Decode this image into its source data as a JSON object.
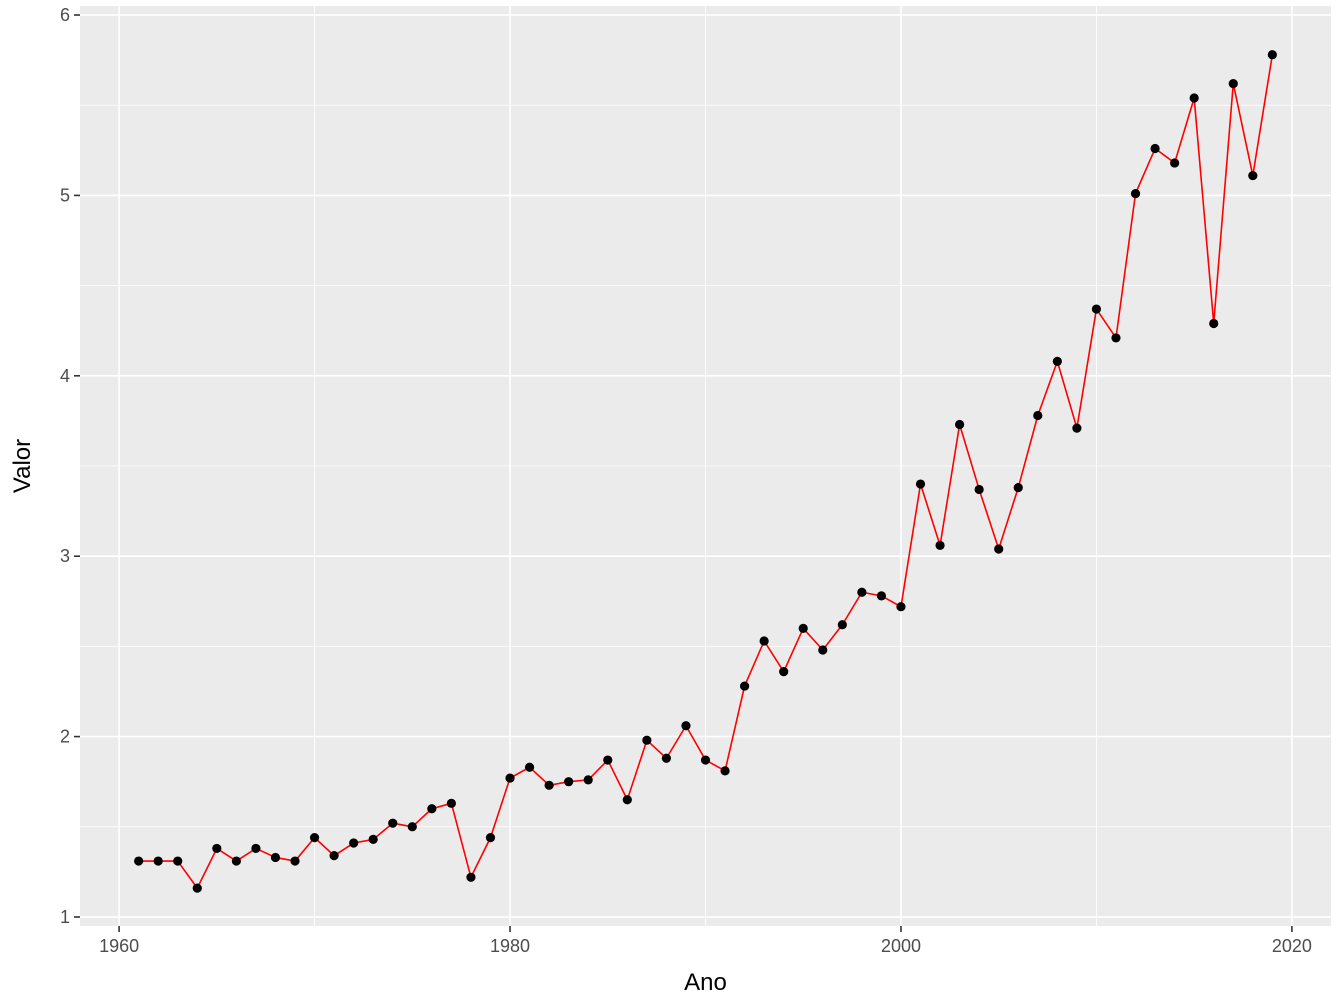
{
  "chart_data": {
    "type": "line",
    "title": "",
    "xlabel": "Ano",
    "ylabel": "Valor",
    "xlim": [
      1958,
      2022
    ],
    "ylim": [
      0.95,
      6.05
    ],
    "x_ticks": [
      1960,
      1980,
      2000,
      2020
    ],
    "y_ticks": [
      1,
      2,
      3,
      4,
      5,
      6
    ],
    "grid": true,
    "legend": "none",
    "colors": {
      "line": "#ff0000",
      "points": "#000000",
      "panel_background": "#ebebeb",
      "grid": "#ffffff"
    },
    "series": [
      {
        "x": [
          1961,
          1962,
          1963,
          1964,
          1965,
          1966,
          1967,
          1968,
          1969,
          1970,
          1971,
          1972,
          1973,
          1974,
          1975,
          1976,
          1977,
          1978,
          1979,
          1980,
          1981,
          1982,
          1983,
          1984,
          1985,
          1986,
          1987,
          1988,
          1989,
          1990,
          1991,
          1992,
          1993,
          1994,
          1995,
          1996,
          1997,
          1998,
          1999,
          2000,
          2001,
          2002,
          2003,
          2004,
          2005,
          2006,
          2007,
          2008,
          2009,
          2010,
          2011,
          2012,
          2013,
          2014,
          2015,
          2016,
          2017,
          2018,
          2019
        ],
        "values": [
          1.31,
          1.31,
          1.31,
          1.16,
          1.38,
          1.31,
          1.38,
          1.33,
          1.31,
          1.44,
          1.34,
          1.41,
          1.43,
          1.52,
          1.5,
          1.6,
          1.63,
          1.22,
          1.44,
          1.77,
          1.83,
          1.73,
          1.75,
          1.76,
          1.87,
          1.65,
          1.98,
          1.88,
          2.06,
          1.87,
          1.81,
          2.28,
          2.53,
          2.36,
          2.6,
          2.48,
          2.62,
          2.8,
          2.78,
          2.72,
          3.4,
          3.06,
          3.73,
          3.37,
          3.04,
          3.38,
          3.78,
          4.08,
          3.71,
          4.37,
          4.21,
          5.01,
          5.26,
          5.18,
          5.54,
          4.29,
          5.62,
          5.11,
          5.78
        ]
      }
    ]
  }
}
